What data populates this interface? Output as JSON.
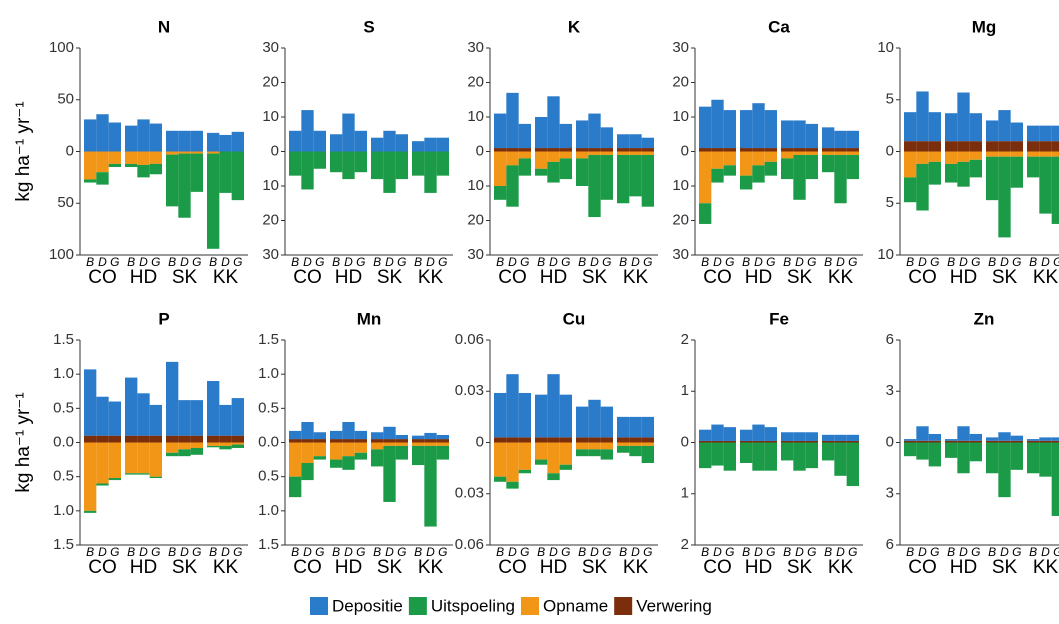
{
  "chart_data": [
    {
      "type": "bar",
      "title": "N",
      "ylabel": "kg ha⁻¹ yr⁻¹",
      "ylim": [
        -100,
        100
      ],
      "yticks": [
        {
          "value": -100,
          "label": "100"
        },
        {
          "value": -50,
          "label": "50"
        },
        0,
        50,
        100
      ],
      "categories": [
        "B",
        "D",
        "G",
        "B",
        "D",
        "G",
        "B",
        "D",
        "G",
        "B",
        "D",
        "G"
      ],
      "groups": [
        "CO",
        "HD",
        "SK",
        "KK"
      ],
      "series": [
        {
          "name": "Depositie",
          "color": "#2b7bcb",
          "values": [
            31,
            36,
            28,
            25,
            31,
            27,
            20,
            20,
            20,
            18,
            16,
            19
          ]
        },
        {
          "name": "Uitspoeling",
          "color": "#1b9a47",
          "values": [
            -3,
            -12,
            -3,
            -3,
            -12,
            -10,
            -50,
            -62,
            -37,
            -92,
            -40,
            -47
          ]
        },
        {
          "name": "Opname",
          "color": "#f29618",
          "values": [
            -27,
            -20,
            -12,
            -12,
            -13,
            -12,
            -3,
            -2,
            -2,
            -2,
            0,
            0
          ]
        },
        {
          "name": "Verwering",
          "color": "#7a2e0b",
          "values": [
            0,
            0,
            0,
            0,
            0,
            0,
            0,
            0,
            0,
            0,
            0,
            0
          ]
        }
      ]
    },
    {
      "type": "bar",
      "title": "S",
      "ylim": [
        -30,
        30
      ],
      "yticks": [
        {
          "value": -30,
          "label": "30"
        },
        {
          "value": -20,
          "label": "20"
        },
        {
          "value": -10,
          "label": "10"
        },
        0,
        10,
        20,
        30
      ],
      "categories": [
        "B",
        "D",
        "G",
        "B",
        "D",
        "G",
        "B",
        "D",
        "G",
        "B",
        "D",
        "G"
      ],
      "groups": [
        "CO",
        "HD",
        "SK",
        "KK"
      ],
      "series": [
        {
          "name": "Depositie",
          "values": [
            6,
            12,
            6,
            5,
            11,
            6,
            4,
            6,
            5,
            3,
            4,
            4
          ]
        },
        {
          "name": "Uitspoeling",
          "values": [
            -7,
            -11,
            -5,
            -6,
            -8,
            -6,
            -8,
            -12,
            -8,
            -7,
            -12,
            -7
          ]
        },
        {
          "name": "Opname",
          "values": [
            0,
            0,
            0,
            0,
            0,
            0,
            0,
            0,
            0,
            0,
            0,
            0
          ]
        },
        {
          "name": "Verwering",
          "values": [
            0,
            0,
            0,
            0,
            0,
            0,
            0,
            0,
            0,
            0,
            0,
            0
          ]
        }
      ]
    },
    {
      "type": "bar",
      "title": "K",
      "ylim": [
        -30,
        30
      ],
      "yticks": [
        {
          "value": -30,
          "label": "30"
        },
        {
          "value": -20,
          "label": "20"
        },
        {
          "value": -10,
          "label": "10"
        },
        0,
        10,
        20,
        30
      ],
      "categories": [
        "B",
        "D",
        "G",
        "B",
        "D",
        "G",
        "B",
        "D",
        "G",
        "B",
        "D",
        "G"
      ],
      "groups": [
        "CO",
        "HD",
        "SK",
        "KK"
      ],
      "series": [
        {
          "name": "Depositie",
          "values": [
            10,
            16,
            7,
            9,
            15,
            7,
            8,
            10,
            6,
            4,
            4,
            3
          ]
        },
        {
          "name": "Uitspoeling",
          "values": [
            -4,
            -12,
            -5,
            -2,
            -6,
            -6,
            -8,
            -18,
            -13,
            -14,
            -12,
            -15
          ]
        },
        {
          "name": "Opname",
          "values": [
            -10,
            -4,
            -2,
            -5,
            -3,
            -2,
            -2,
            -1,
            -1,
            -1,
            -1,
            -1
          ]
        },
        {
          "name": "Verwering",
          "values": [
            1,
            1,
            1,
            1,
            1,
            1,
            1,
            1,
            1,
            1,
            1,
            1
          ]
        }
      ]
    },
    {
      "type": "bar",
      "title": "Ca",
      "ylim": [
        -30,
        30
      ],
      "yticks": [
        {
          "value": -30,
          "label": "30"
        },
        {
          "value": -20,
          "label": "20"
        },
        {
          "value": -10,
          "label": "10"
        },
        0,
        10,
        20,
        30
      ],
      "categories": [
        "B",
        "D",
        "G",
        "B",
        "D",
        "G",
        "B",
        "D",
        "G",
        "B",
        "D",
        "G"
      ],
      "groups": [
        "CO",
        "HD",
        "SK",
        "KK"
      ],
      "series": [
        {
          "name": "Depositie",
          "values": [
            12,
            14,
            11,
            11,
            13,
            11,
            8,
            8,
            7,
            6,
            5,
            5
          ]
        },
        {
          "name": "Uitspoeling",
          "values": [
            -6,
            -4,
            -3,
            -4,
            -5,
            -4,
            -6,
            -13,
            -7,
            -5,
            -14,
            -7
          ]
        },
        {
          "name": "Opname",
          "values": [
            -15,
            -5,
            -4,
            -7,
            -4,
            -3,
            -2,
            -1,
            -1,
            -1,
            -1,
            -1
          ]
        },
        {
          "name": "Verwering",
          "values": [
            1,
            1,
            1,
            1,
            1,
            1,
            1,
            1,
            1,
            1,
            1,
            1
          ]
        }
      ]
    },
    {
      "type": "bar",
      "title": "Mg",
      "ylim": [
        -10,
        10
      ],
      "yticks": [
        {
          "value": -10,
          "label": "10"
        },
        {
          "value": -5,
          "label": "5"
        },
        0,
        5,
        10
      ],
      "categories": [
        "B",
        "D",
        "G",
        "B",
        "D",
        "G",
        "B",
        "D",
        "G",
        "B",
        "D",
        "G"
      ],
      "groups": [
        "CO",
        "HD",
        "SK",
        "KK"
      ],
      "series": [
        {
          "name": "Depositie",
          "values": [
            2.8,
            4.8,
            2.8,
            2.7,
            4.7,
            2.7,
            2,
            3,
            1.8,
            1.5,
            1.5,
            1.5
          ]
        },
        {
          "name": "Uitspoeling",
          "values": [
            -2.4,
            -4.5,
            -2.2,
            -1.8,
            -2.4,
            -1.7,
            -4.2,
            -7.8,
            -3,
            -2,
            -5.5,
            -6.5
          ]
        },
        {
          "name": "Opname",
          "values": [
            -2.5,
            -1.2,
            -1,
            -1.2,
            -1,
            -0.8,
            -0.5,
            -0.5,
            -0.5,
            -0.5,
            -0.5,
            -0.5
          ]
        },
        {
          "name": "Verwering",
          "values": [
            1,
            1,
            1,
            1,
            1,
            1,
            1,
            1,
            1,
            1,
            1,
            1
          ]
        }
      ]
    },
    {
      "type": "bar",
      "title": "P",
      "ylabel": "kg ha⁻¹ yr⁻¹",
      "ylim": [
        -1.5,
        1.5
      ],
      "yticks": [
        {
          "value": -1.5,
          "label": "1.5"
        },
        {
          "value": -1,
          "label": "1.0"
        },
        {
          "value": -0.5,
          "label": "0.5"
        },
        {
          "value": 0,
          "label": "0.0"
        },
        0.5,
        {
          "value": 1,
          "label": "1.0"
        },
        1.5
      ],
      "categories": [
        "B",
        "D",
        "G",
        "B",
        "D",
        "G",
        "B",
        "D",
        "G",
        "B",
        "D",
        "G"
      ],
      "groups": [
        "CO",
        "HD",
        "SK",
        "KK"
      ],
      "series": [
        {
          "name": "Depositie",
          "values": [
            0.97,
            0.57,
            0.5,
            0.85,
            0.62,
            0.45,
            1.08,
            0.52,
            0.52,
            0.8,
            0.45,
            0.55
          ]
        },
        {
          "name": "Uitspoeling",
          "values": [
            -0.03,
            -0.03,
            -0.03,
            -0.02,
            -0.02,
            -0.02,
            -0.05,
            -0.1,
            -0.1,
            -0.02,
            -0.05,
            -0.05
          ]
        },
        {
          "name": "Opname",
          "values": [
            -1,
            -0.6,
            -0.52,
            -0.45,
            -0.45,
            -0.5,
            -0.15,
            -0.1,
            -0.08,
            -0.05,
            -0.05,
            -0.03
          ]
        },
        {
          "name": "Verwering",
          "values": [
            0.1,
            0.1,
            0.1,
            0.1,
            0.1,
            0.1,
            0.1,
            0.1,
            0.1,
            0.1,
            0.1,
            0.1
          ]
        }
      ]
    },
    {
      "type": "bar",
      "title": "Mn",
      "ylim": [
        -1.5,
        1.5
      ],
      "yticks": [
        {
          "value": -1.5,
          "label": "1.5"
        },
        {
          "value": -1,
          "label": "1.0"
        },
        {
          "value": -0.5,
          "label": "0.5"
        },
        {
          "value": 0,
          "label": "0.0"
        },
        0.5,
        {
          "value": 1,
          "label": "1.0"
        },
        1.5
      ],
      "categories": [
        "B",
        "D",
        "G",
        "B",
        "D",
        "G",
        "B",
        "D",
        "G",
        "B",
        "D",
        "G"
      ],
      "groups": [
        "CO",
        "HD",
        "SK",
        "KK"
      ],
      "series": [
        {
          "name": "Depositie",
          "values": [
            0.12,
            0.25,
            0.1,
            0.12,
            0.25,
            0.12,
            0.1,
            0.18,
            0.06,
            0.05,
            0.09,
            0.06
          ]
        },
        {
          "name": "Uitspoeling",
          "values": [
            -0.3,
            -0.25,
            -0.05,
            -0.12,
            -0.2,
            -0.1,
            -0.25,
            -0.82,
            -0.2,
            -0.28,
            -1.18,
            -0.2
          ]
        },
        {
          "name": "Opname",
          "values": [
            -0.5,
            -0.3,
            -0.2,
            -0.25,
            -0.2,
            -0.15,
            -0.1,
            -0.05,
            -0.05,
            -0.05,
            -0.05,
            -0.05
          ]
        },
        {
          "name": "Verwering",
          "values": [
            0.05,
            0.05,
            0.05,
            0.05,
            0.05,
            0.05,
            0.05,
            0.05,
            0.05,
            0.05,
            0.05,
            0.05
          ]
        }
      ]
    },
    {
      "type": "bar",
      "title": "Cu",
      "ylim": [
        -0.06,
        0.06
      ],
      "yticks": [
        {
          "value": -0.06,
          "label": "0.06"
        },
        {
          "value": -0.03,
          "label": "0.03"
        },
        0,
        0.03,
        0.06
      ],
      "categories": [
        "B",
        "D",
        "G",
        "B",
        "D",
        "G",
        "B",
        "D",
        "G",
        "B",
        "D",
        "G"
      ],
      "groups": [
        "CO",
        "HD",
        "SK",
        "KK"
      ],
      "series": [
        {
          "name": "Depositie",
          "values": [
            0.026,
            0.037,
            0.026,
            0.025,
            0.037,
            0.025,
            0.018,
            0.022,
            0.018,
            0.012,
            0.012,
            0.012
          ]
        },
        {
          "name": "Uitspoeling",
          "values": [
            -0.003,
            -0.004,
            -0.002,
            -0.003,
            -0.004,
            -0.003,
            -0.004,
            -0.004,
            -0.006,
            -0.004,
            -0.006,
            -0.01
          ]
        },
        {
          "name": "Opname",
          "values": [
            -0.02,
            -0.023,
            -0.016,
            -0.01,
            -0.018,
            -0.013,
            -0.004,
            -0.004,
            -0.004,
            -0.002,
            -0.002,
            -0.002
          ]
        },
        {
          "name": "Verwering",
          "values": [
            0.003,
            0.003,
            0.003,
            0.003,
            0.003,
            0.003,
            0.003,
            0.003,
            0.003,
            0.003,
            0.003,
            0.003
          ]
        }
      ]
    },
    {
      "type": "bar",
      "title": "Fe",
      "ylim": [
        -2,
        2
      ],
      "yticks": [
        {
          "value": -2,
          "label": "2"
        },
        {
          "value": -1,
          "label": "1"
        },
        0,
        1,
        2
      ],
      "categories": [
        "B",
        "D",
        "G",
        "B",
        "D",
        "G",
        "B",
        "D",
        "G",
        "B",
        "D",
        "G"
      ],
      "groups": [
        "CO",
        "HD",
        "SK",
        "KK"
      ],
      "series": [
        {
          "name": "Depositie",
          "values": [
            0.22,
            0.32,
            0.27,
            0.22,
            0.32,
            0.27,
            0.17,
            0.17,
            0.17,
            0.12,
            0.12,
            0.12
          ]
        },
        {
          "name": "Uitspoeling",
          "values": [
            -0.5,
            -0.45,
            -0.55,
            -0.4,
            -0.55,
            -0.55,
            -0.35,
            -0.55,
            -0.5,
            -0.35,
            -0.65,
            -0.85
          ]
        },
        {
          "name": "Opname",
          "values": [
            0,
            0,
            0,
            0,
            0,
            0,
            0,
            0,
            0,
            0,
            0,
            0
          ]
        },
        {
          "name": "Verwering",
          "values": [
            0.03,
            0.03,
            0.03,
            0.03,
            0.03,
            0.03,
            0.03,
            0.03,
            0.03,
            0.03,
            0.03,
            0.03
          ]
        }
      ]
    },
    {
      "type": "bar",
      "title": "Zn",
      "ylim": [
        -6,
        6
      ],
      "yticks": [
        {
          "value": -6,
          "label": "6"
        },
        {
          "value": -3,
          "label": "3"
        },
        0,
        3,
        6
      ],
      "categories": [
        "B",
        "D",
        "G",
        "B",
        "D",
        "G",
        "B",
        "D",
        "G",
        "B",
        "D",
        "G"
      ],
      "groups": [
        "CO",
        "HD",
        "SK",
        "KK"
      ],
      "series": [
        {
          "name": "Depositie",
          "values": [
            0.1,
            0.85,
            0.4,
            0.1,
            0.85,
            0.4,
            0.2,
            0.5,
            0.3,
            0.1,
            0.2,
            0.2
          ]
        },
        {
          "name": "Uitspoeling",
          "values": [
            -0.8,
            -1,
            -1.4,
            -0.9,
            -1.8,
            -1.1,
            -1.8,
            -3.2,
            -1.6,
            -1.8,
            -2,
            -4.3
          ]
        },
        {
          "name": "Opname",
          "values": [
            0,
            0,
            0,
            0,
            0,
            0,
            0,
            0,
            0,
            0,
            0,
            0
          ]
        },
        {
          "name": "Verwering",
          "values": [
            0.1,
            0.1,
            0.1,
            0.1,
            0.1,
            0.1,
            0.1,
            0.1,
            0.1,
            0.1,
            0.1,
            0.1
          ]
        }
      ]
    }
  ]
}
